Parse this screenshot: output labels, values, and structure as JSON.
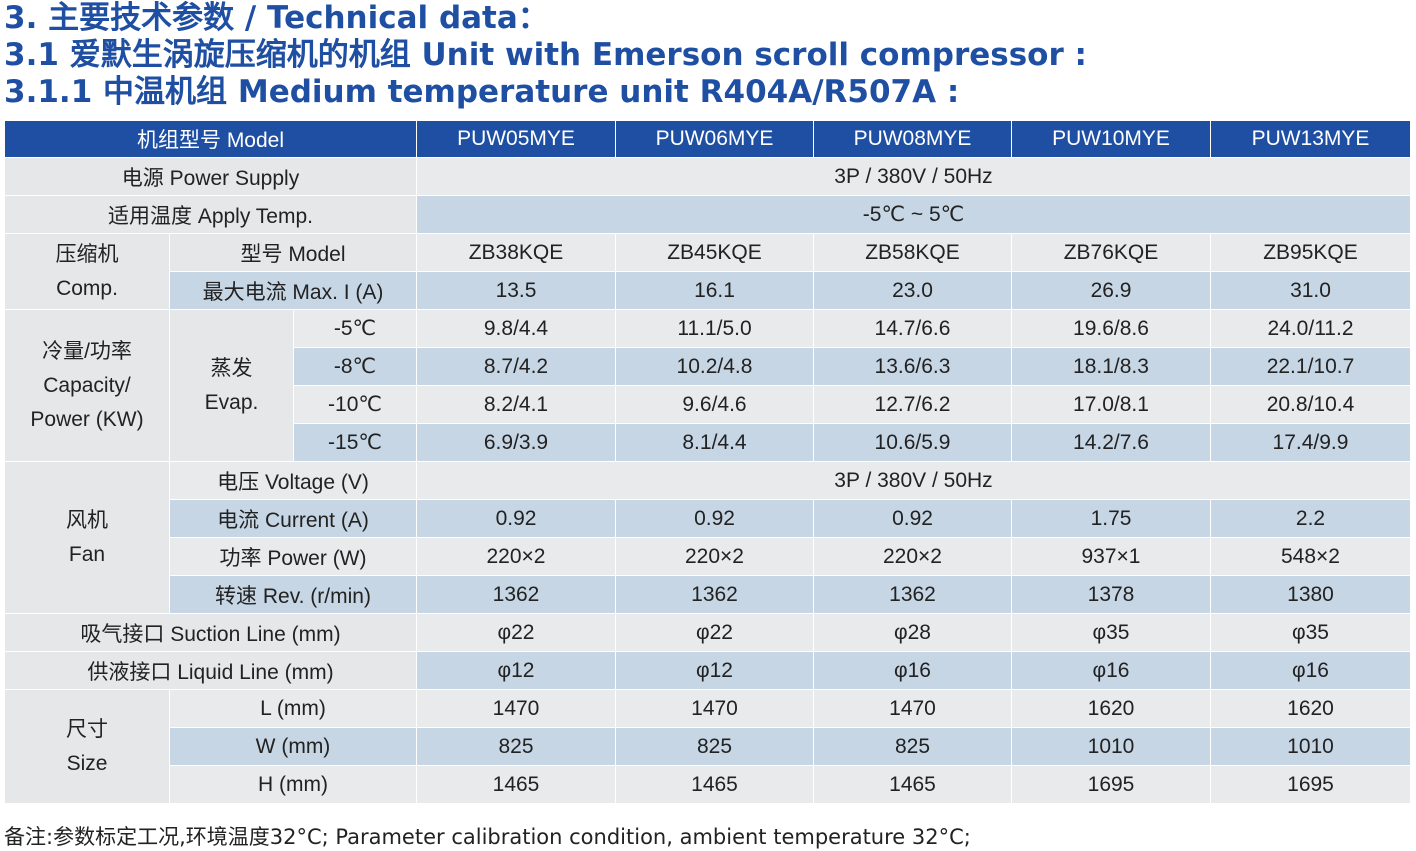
{
  "titles": {
    "section": "3. 主要技术参数 / Technical data：",
    "subsection": "3.1 爱默生涡旋压缩机的机组 Unit with Emerson scroll compressor :",
    "subsubsection": "3.1.1 中温机组 Medium temperature unit  R404A/R507A :"
  },
  "table": {
    "header": {
      "model_label": "机组型号 Model",
      "models": [
        "PUW05MYE",
        "PUW06MYE",
        "PUW08MYE",
        "PUW10MYE",
        "PUW13MYE"
      ]
    },
    "power_supply": {
      "label": "电源 Power Supply",
      "value": "3P / 380V / 50Hz"
    },
    "apply_temp": {
      "label": "适用温度 Apply Temp.",
      "value": "-5℃ ~ 5℃"
    },
    "compressor": {
      "group_label_cn": "压缩机",
      "group_label_en": "Comp.",
      "model_row": {
        "label": "型号 Model",
        "values": [
          "ZB38KQE",
          "ZB45KQE",
          "ZB58KQE",
          "ZB76KQE",
          "ZB95KQE"
        ]
      },
      "current_row": {
        "label": "最大电流 Max. I (A)",
        "values": [
          "13.5",
          "16.1",
          "23.0",
          "26.9",
          "31.0"
        ]
      }
    },
    "capacity": {
      "group_label_cn": "冷量/功率",
      "group_label_en1": "Capacity/",
      "group_label_en2": "Power (KW)",
      "sub_label_cn": "蒸发",
      "sub_label_en": "Evap.",
      "rows": [
        {
          "temp": "-5℃",
          "values": [
            "9.8/4.4",
            "11.1/5.0",
            "14.7/6.6",
            "19.6/8.6",
            "24.0/11.2"
          ]
        },
        {
          "temp": "-8℃",
          "values": [
            "8.7/4.2",
            "10.2/4.8",
            "13.6/6.3",
            "18.1/8.3",
            "22.1/10.7"
          ]
        },
        {
          "temp": "-10℃",
          "values": [
            "8.2/4.1",
            "9.6/4.6",
            "12.7/6.2",
            "17.0/8.1",
            "20.8/10.4"
          ]
        },
        {
          "temp": "-15℃",
          "values": [
            "6.9/3.9",
            "8.1/4.4",
            "10.6/5.9",
            "14.2/7.6",
            "17.4/9.9"
          ]
        }
      ]
    },
    "fan": {
      "group_label_cn": "风机",
      "group_label_en": "Fan",
      "voltage_row": {
        "label": "电压 Voltage (V)",
        "value": "3P / 380V / 50Hz"
      },
      "current_row": {
        "label": "电流 Current (A)",
        "values": [
          "0.92",
          "0.92",
          "0.92",
          "1.75",
          "2.2"
        ]
      },
      "power_row": {
        "label": "功率 Power (W)",
        "values": [
          "220×2",
          "220×2",
          "220×2",
          "937×1",
          "548×2"
        ]
      },
      "speed_row": {
        "label": "转速 Rev. (r/min)",
        "values": [
          "1362",
          "1362",
          "1362",
          "1378",
          "1380"
        ]
      }
    },
    "suction_line": {
      "label": "吸气接口 Suction Line (mm)",
      "values": [
        "φ22",
        "φ22",
        "φ28",
        "φ35",
        "φ35"
      ]
    },
    "liquid_line": {
      "label": "供液接口 Liquid Line (mm)",
      "values": [
        "φ12",
        "φ12",
        "φ16",
        "φ16",
        "φ16"
      ]
    },
    "size": {
      "group_label_cn": "尺寸",
      "group_label_en": "Size",
      "rows": [
        {
          "label": "L (mm)",
          "values": [
            "1470",
            "1470",
            "1470",
            "1620",
            "1620"
          ]
        },
        {
          "label": "W (mm)",
          "values": [
            "825",
            "825",
            "825",
            "1010",
            "1010"
          ]
        },
        {
          "label": "H (mm)",
          "values": [
            "1465",
            "1465",
            "1465",
            "1695",
            "1695"
          ]
        }
      ]
    }
  },
  "footnote": "备注:参数标定工况,环境温度32°C; Parameter calibration condition, ambient temperature 32°C;"
}
